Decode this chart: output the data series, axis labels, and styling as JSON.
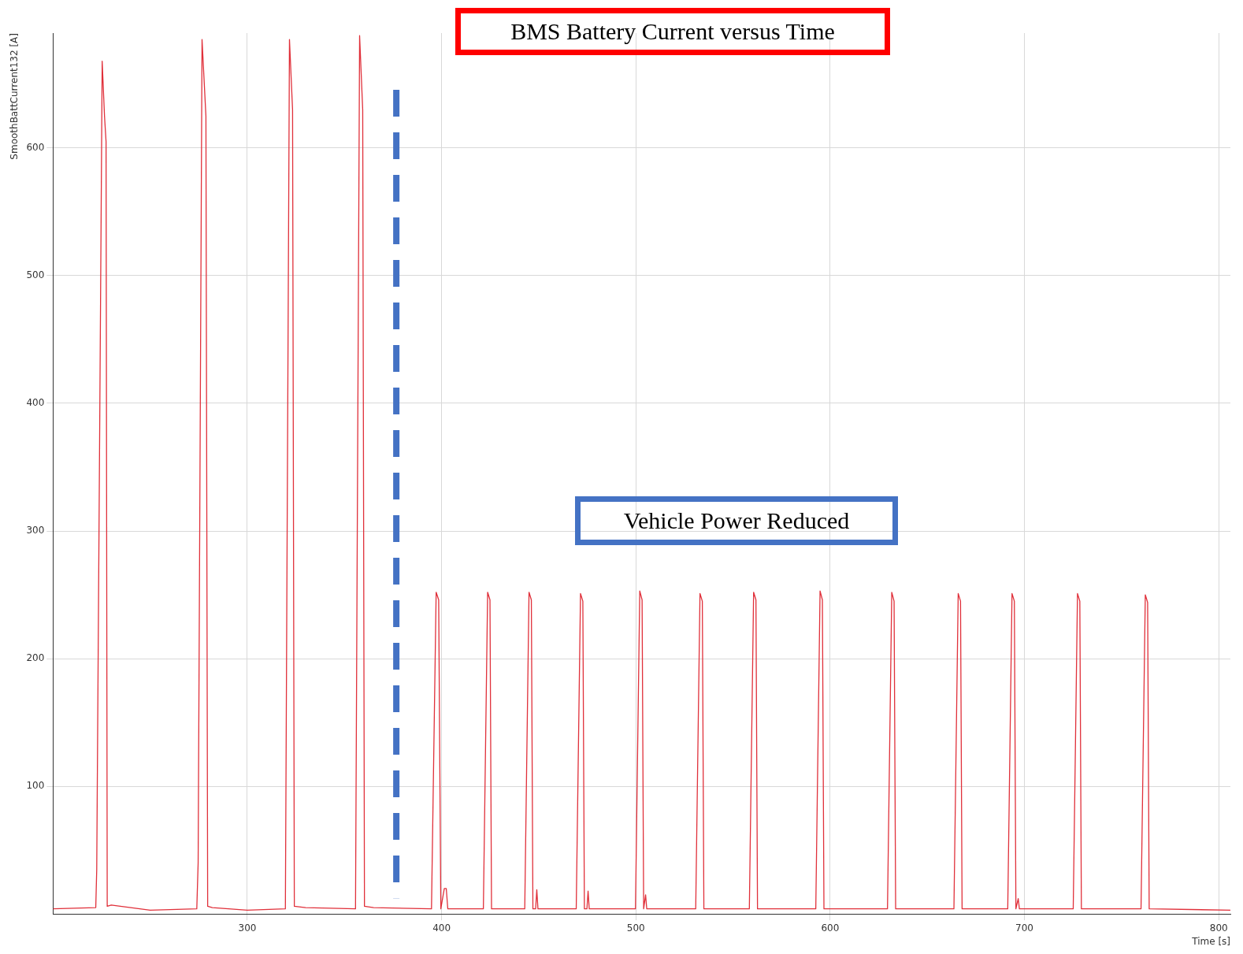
{
  "chart_data": {
    "type": "line",
    "title": "BMS Battery Current versus Time",
    "xlabel": "Time [s]",
    "ylabel": "SmoothBattCurrent132 [A]",
    "xlim": [
      200,
      806
    ],
    "ylim": [
      0,
      690
    ],
    "xticks": [
      300,
      400,
      500,
      600,
      700,
      800
    ],
    "yticks": [
      100,
      200,
      300,
      400,
      500,
      600
    ],
    "grid": true,
    "legend": false,
    "marker": "none",
    "line_style": "solid",
    "annotations": [
      "Vehicle Power Reduced"
    ],
    "ref_lines": [
      {
        "axis": "x",
        "value": 376.7,
        "label": null,
        "color": "#4472c4",
        "line_style": "dashed"
      }
    ],
    "series": [
      {
        "color": "#e0303a",
        "x": [
          200,
          222,
          222.5,
          225.3,
          226.5,
          227.3,
          227.9,
          230,
          250,
          274,
          274.7,
          276.7,
          278.7,
          279.6,
          282,
          300,
          319.6,
          321.7,
          323.3,
          324.2,
          330,
          355.7,
          357.8,
          359.4,
          360.3,
          365,
          394.8,
          397.2,
          398.5,
          399.6,
          401.4,
          402.4,
          403.2,
          421.5,
          423.7,
          424.9,
          425.7,
          442.8,
          445,
          446.2,
          447,
          448.4,
          449,
          449.6,
          469.3,
          471.5,
          472.7,
          473.5,
          474.8,
          475.4,
          476,
          499.8,
          502,
          503.2,
          504,
          505,
          505.6,
          530.8,
          533,
          534.2,
          535,
          558.4,
          560.6,
          561.8,
          562.6,
          592.6,
          594.8,
          596,
          596.8,
          629.5,
          631.7,
          632.9,
          633.7,
          663.7,
          665.9,
          667.1,
          667.9,
          691.4,
          693.6,
          694.8,
          695.6,
          696.8,
          697.4,
          725.1,
          727.3,
          728.5,
          729.3,
          760,
          762.2,
          763.4,
          764.2,
          806
        ],
        "values": [
          4,
          5,
          35,
          668,
          625,
          605,
          6,
          7,
          3,
          4,
          40,
          685,
          625,
          6,
          5,
          3,
          4,
          685,
          630,
          6,
          5,
          4,
          688,
          630,
          6,
          5,
          4,
          252,
          246,
          4,
          20,
          20,
          4,
          4,
          252,
          246,
          4,
          4,
          252,
          246,
          4,
          4,
          19,
          4,
          4,
          251,
          245,
          4,
          4,
          18,
          4,
          4,
          253,
          246,
          4,
          15,
          4,
          4,
          251,
          245,
          4,
          4,
          252,
          246,
          4,
          4,
          253,
          246,
          4,
          4,
          252,
          245,
          4,
          4,
          251,
          245,
          4,
          4,
          251,
          245,
          4,
          12,
          4,
          4,
          251,
          245,
          4,
          4,
          250,
          244,
          4,
          3
        ]
      }
    ]
  }
}
